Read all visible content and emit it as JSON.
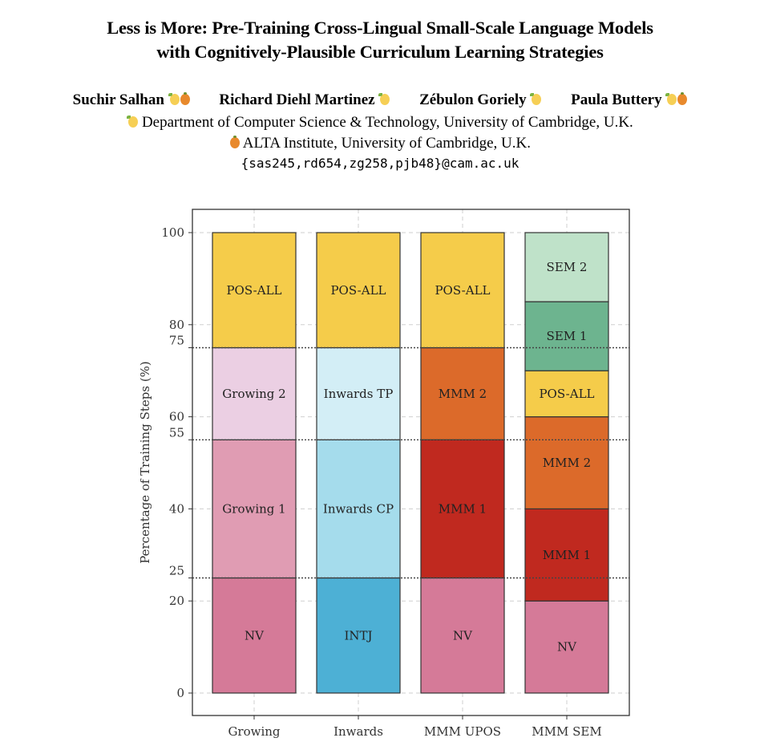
{
  "paper": {
    "title_line1": "Less is More: Pre-Training Cross-Lingual Small-Scale Language Models",
    "title_line2": "with Cognitively-Plausible Curriculum Learning Strategies",
    "authors": [
      {
        "name": "Suchir Salhan",
        "marks": [
          "lemon-icon",
          "orange-icon"
        ]
      },
      {
        "name": "Richard Diehl Martinez",
        "marks": [
          "lemon-icon"
        ]
      },
      {
        "name": "Zébulon Goriely",
        "marks": [
          "lemon-icon"
        ]
      },
      {
        "name": "Paula Buttery",
        "marks": [
          "lemon-icon",
          "orange-icon"
        ]
      }
    ],
    "affiliations": [
      {
        "mark": "lemon-icon",
        "text": "Department of Computer Science & Technology, University of Cambridge, U.K."
      },
      {
        "mark": "orange-icon",
        "text": "ALTA Institute, University of Cambridge, U.K."
      }
    ],
    "email": "{sas245,rd654,zg258,pjb48}@cam.ac.uk"
  },
  "chart_data": {
    "type": "bar",
    "stacked": true,
    "title": "",
    "xlabel": "",
    "ylabel": "Percentage of Training Steps (%)",
    "ylim": [
      -5,
      105
    ],
    "yticks": [
      0,
      20,
      25,
      40,
      55,
      60,
      75,
      80,
      100
    ],
    "grid": true,
    "reference_lines": [
      25,
      55,
      75
    ],
    "categories": [
      "Growing",
      "Inwards",
      "MMM UPOS",
      "MMM SEM"
    ],
    "bars": [
      {
        "category": "Growing",
        "segments": [
          {
            "label": "NV",
            "start": 0,
            "end": 25,
            "color": "#d57a98"
          },
          {
            "label": "Growing 1",
            "start": 25,
            "end": 55,
            "color": "#e09cb3"
          },
          {
            "label": "Growing 2",
            "start": 55,
            "end": 75,
            "color": "#ebcfe3"
          },
          {
            "label": "POS-ALL",
            "start": 75,
            "end": 100,
            "color": "#f5cc4a"
          }
        ]
      },
      {
        "category": "Inwards",
        "segments": [
          {
            "label": "INTJ",
            "start": 0,
            "end": 25,
            "color": "#4db0d5"
          },
          {
            "label": "Inwards CP",
            "start": 25,
            "end": 55,
            "color": "#a5dcec"
          },
          {
            "label": "Inwards TP",
            "start": 55,
            "end": 75,
            "color": "#d3eef6"
          },
          {
            "label": "POS-ALL",
            "start": 75,
            "end": 100,
            "color": "#f5cc4a"
          }
        ]
      },
      {
        "category": "MMM UPOS",
        "segments": [
          {
            "label": "NV",
            "start": 0,
            "end": 25,
            "color": "#d57a98"
          },
          {
            "label": "MMM 1",
            "start": 25,
            "end": 55,
            "color": "#c0291f"
          },
          {
            "label": "MMM 2",
            "start": 55,
            "end": 75,
            "color": "#dc6a2a"
          },
          {
            "label": "POS-ALL",
            "start": 75,
            "end": 100,
            "color": "#f5cc4a"
          }
        ]
      },
      {
        "category": "MMM SEM",
        "segments": [
          {
            "label": "NV",
            "start": 0,
            "end": 20,
            "color": "#d57a98"
          },
          {
            "label": "MMM 1",
            "start": 20,
            "end": 40,
            "color": "#c0291f"
          },
          {
            "label": "MMM 2",
            "start": 40,
            "end": 60,
            "color": "#dc6a2a"
          },
          {
            "label": "POS-ALL",
            "start": 60,
            "end": 70,
            "color": "#f5cc4a"
          },
          {
            "label": "SEM 1",
            "start": 70,
            "end": 85,
            "color": "#6db48f"
          },
          {
            "label": "SEM 2",
            "start": 85,
            "end": 100,
            "color": "#bfe2c9"
          }
        ]
      }
    ]
  }
}
